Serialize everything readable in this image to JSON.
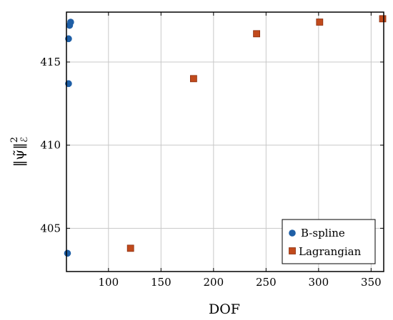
{
  "chart_data": {
    "type": "scatter",
    "title": "",
    "xlabel": "DOF",
    "ylabel": "‖ψ̃‖²_ℰ",
    "ylabel_parts": {
      "base": "‖ψ̃‖",
      "sup": "2",
      "sub": "ℰ"
    },
    "xlim": [
      60,
      362
    ],
    "ylim": [
      402.4,
      418.0
    ],
    "xticks": [
      100,
      150,
      200,
      250,
      300,
      350
    ],
    "xtick_labels": [
      "100",
      "150",
      "200",
      "250",
      "300",
      "350"
    ],
    "yticks": [
      405,
      410,
      415
    ],
    "ytick_labels": [
      "405",
      "410",
      "415"
    ],
    "grid": true,
    "legend_position": "bottom-right",
    "series": [
      {
        "name": "B-spline",
        "marker": "circle",
        "color": "#1f5fa6",
        "x": [
          61,
          62,
          62,
          63,
          64
        ],
        "y": [
          403.5,
          413.7,
          416.4,
          417.2,
          417.4
        ]
      },
      {
        "name": "Lagrangian",
        "marker": "square",
        "color": "#c14a1c",
        "x": [
          121,
          181,
          241,
          301,
          361
        ],
        "y": [
          403.8,
          414.0,
          416.7,
          417.4,
          417.6
        ]
      }
    ]
  }
}
